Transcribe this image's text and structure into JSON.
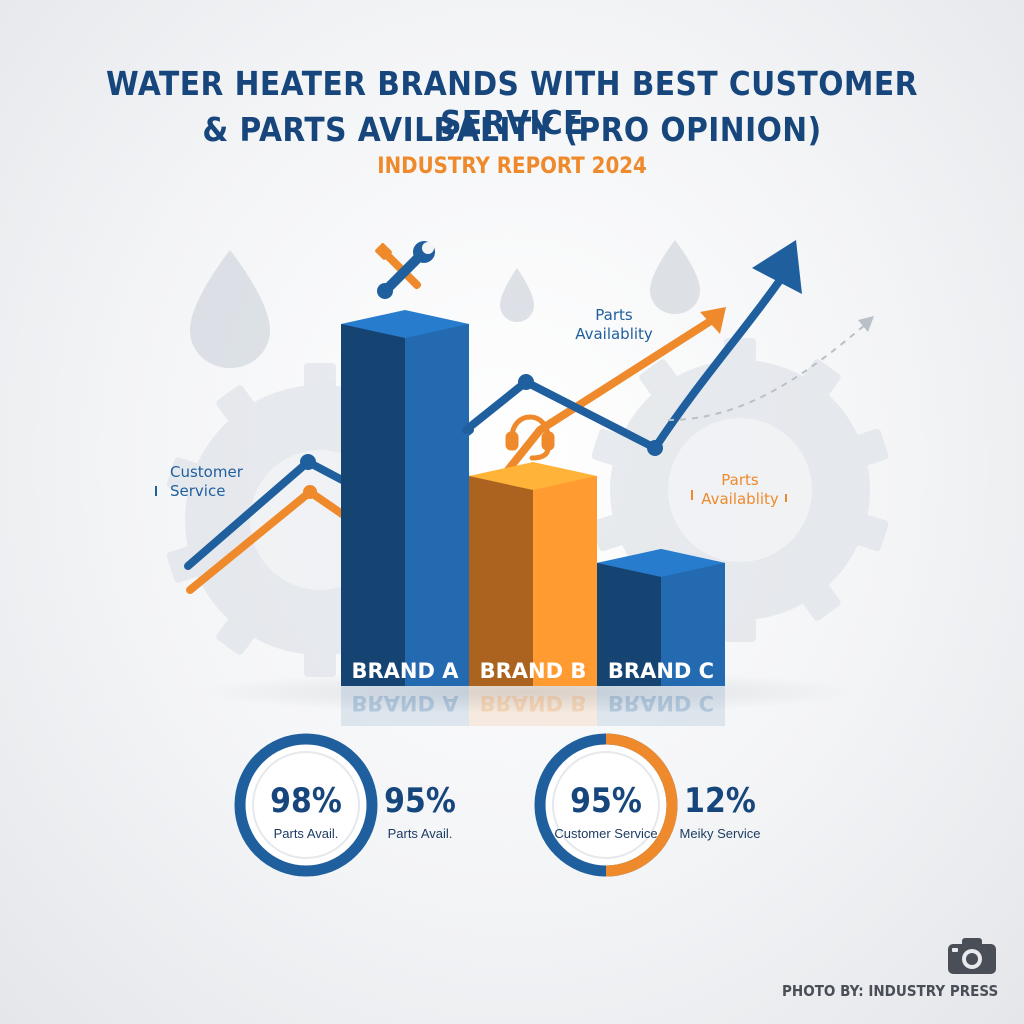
{
  "header": {
    "title_line1": "WATER HEATER BRANDS WITH BEST CUSTOMER SERVICE",
    "title_line2": "& PARTS AVILBALITY (PRO OPINION)",
    "subtitle": "INDUSTRY REPORT 2024"
  },
  "chart_data": {
    "type": "bar",
    "categories": [
      "BRAND A",
      "BRAND B",
      "BRAND C"
    ],
    "values": [
      100,
      58,
      34
    ],
    "colors": [
      "#1f5f9e",
      "#ef8a2c",
      "#1f5f9e"
    ],
    "line_labels": {
      "customer_service": "Customer Service",
      "parts_top": "Parts Availablity",
      "parts_right": "Parts Availablity"
    }
  },
  "stats": [
    {
      "value": "98%",
      "caption": "Parts Avail.",
      "ring_color": "#1f5f9e",
      "fill": 1.0
    },
    {
      "value": "95%",
      "caption": "Parts Avail."
    },
    {
      "value": "95%",
      "caption": "Customer Service",
      "ring_color": "#ef8a2c",
      "fill": 0.5
    },
    {
      "value": "12%",
      "caption": "Meiky Service"
    }
  ],
  "footer": {
    "credit": "PHOTO BY: INDUSTRY PRESS"
  },
  "icons": [
    "wrench-screwdriver-icon",
    "headset-icon",
    "water-drop-icon",
    "gear-icon",
    "camera-icon"
  ]
}
